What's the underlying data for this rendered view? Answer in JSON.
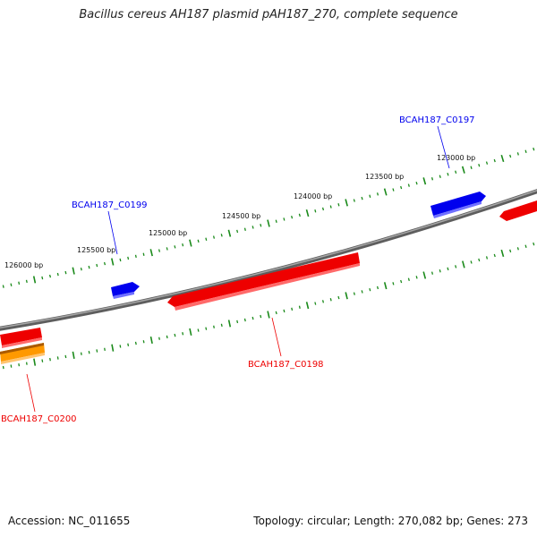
{
  "title": "Bacillus cereus AH187 plasmid pAH187_270, complete sequence",
  "footer": {
    "accession": "Accession: NC_011655",
    "summary": "Topology: circular; Length: 270,082 bp; Genes: 273"
  },
  "ticks": [
    {
      "label": "126000 bp"
    },
    {
      "label": "125500 bp"
    },
    {
      "label": "125000 bp"
    },
    {
      "label": "124500 bp"
    },
    {
      "label": "124000 bp"
    },
    {
      "label": "123500 bp"
    },
    {
      "label": "123000 bp"
    }
  ],
  "genes": [
    {
      "label": "BCAH187_C0197",
      "strand": "forward",
      "color": "#0000ee"
    },
    {
      "label": "BCAH187_C0199",
      "strand": "forward",
      "color": "#0000ee"
    },
    {
      "label": "BCAH187_C0198",
      "strand": "reverse",
      "color": "#ee0000"
    },
    {
      "label": "BCAH187_C0200",
      "strand": "reverse",
      "color": "#ee0000"
    }
  ],
  "colors": {
    "backbone": "#7a7a7a",
    "tick": "#1a8a1a",
    "forward_gene": "#0000ee",
    "reverse_gene": "#ee0000",
    "reverse_gene_alt": "#ff9900"
  }
}
